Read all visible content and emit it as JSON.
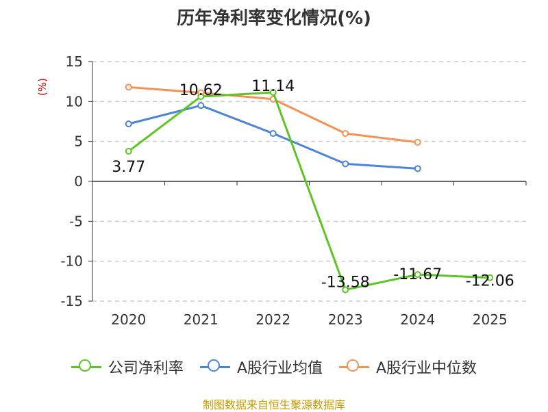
{
  "chart_data": {
    "type": "line",
    "title": "历年净利率变化情况(%)",
    "y_unit_label": "(%)",
    "categories": [
      "2020",
      "2021",
      "2022",
      "2023",
      "2024",
      "2025"
    ],
    "y_ticks": [
      "15",
      "10",
      "5",
      "0",
      "-5",
      "-10",
      "-15"
    ],
    "y_tick_values": [
      15,
      10,
      5,
      0,
      -5,
      -10,
      -15
    ],
    "ylim": [
      -15,
      15
    ],
    "grid": true,
    "legend_position": "bottom",
    "series": [
      {
        "name": "公司净利率",
        "color": "#5cc523",
        "values": [
          3.77,
          10.62,
          11.14,
          -13.58,
          -11.67,
          -12.06
        ],
        "labels": [
          "3.77",
          "10.62",
          "11.14",
          "-13.58",
          "-11.67",
          "-12.06"
        ]
      },
      {
        "name": "A股行业均值",
        "color": "#4b84d8",
        "values": [
          7.2,
          9.5,
          6.0,
          2.2,
          1.6,
          null
        ]
      },
      {
        "name": "A股行业中位数",
        "color": "#f79153",
        "values": [
          11.8,
          11.1,
          10.3,
          6.0,
          4.9,
          null
        ]
      }
    ]
  },
  "footer": {
    "source": "制图数据来自恒生聚源数据库"
  }
}
